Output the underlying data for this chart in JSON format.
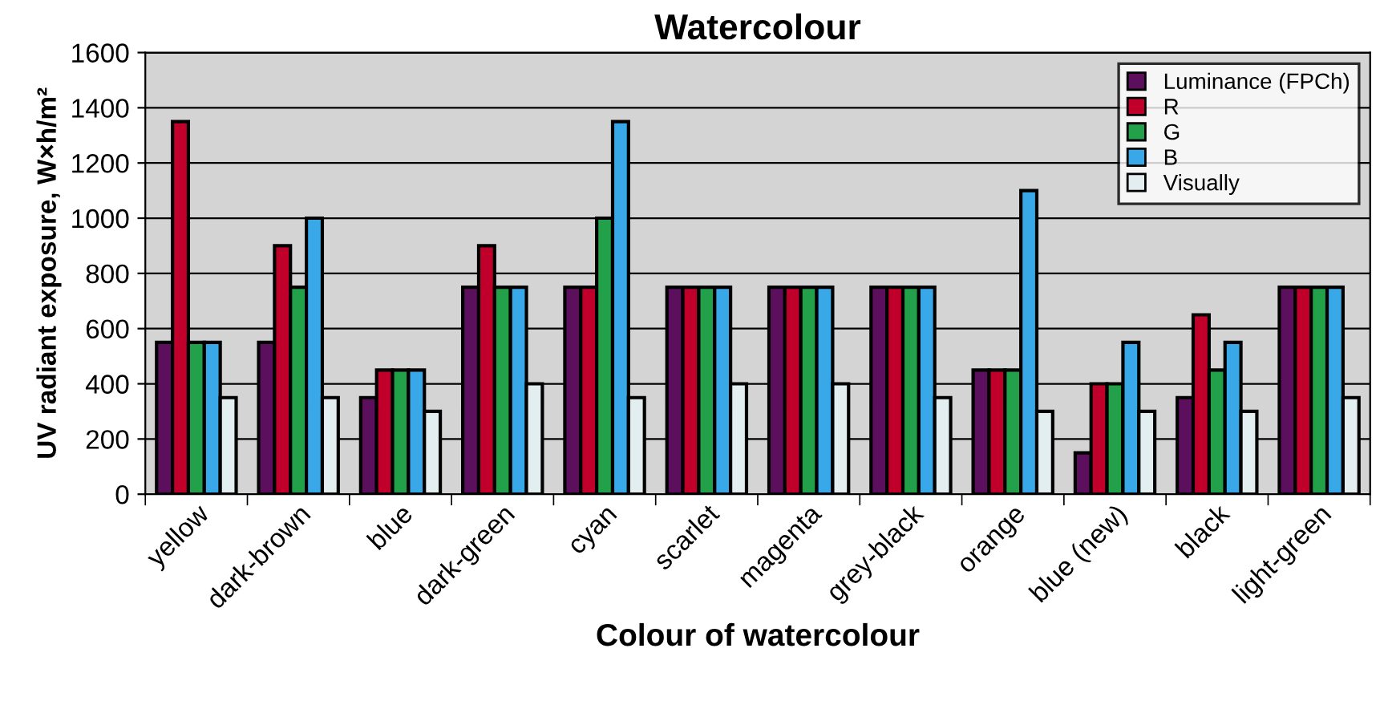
{
  "chart_data": {
    "type": "bar",
    "title": "Watercolour",
    "xlabel": "Colour of watercolour",
    "ylabel": "UV radiant exposure, W×h/m²",
    "categories": [
      "yellow",
      "dark-brown",
      "blue",
      "dark-green",
      "cyan",
      "scarlet",
      "magenta",
      "grey-black",
      "orange",
      "blue (new)",
      "black",
      "light-green"
    ],
    "series": [
      {
        "name": "Luminance (FPCh)",
        "color": "#5c0f5c",
        "values": [
          550,
          550,
          350,
          750,
          750,
          750,
          750,
          750,
          450,
          150,
          350,
          750
        ]
      },
      {
        "name": "R",
        "color": "#c0002a",
        "values": [
          1350,
          900,
          450,
          900,
          750,
          750,
          750,
          750,
          450,
          400,
          650,
          750
        ]
      },
      {
        "name": "G",
        "color": "#23a04a",
        "values": [
          550,
          750,
          450,
          750,
          1000,
          750,
          750,
          750,
          450,
          400,
          450,
          750
        ]
      },
      {
        "name": "B",
        "color": "#38a8e8",
        "values": [
          550,
          1000,
          450,
          750,
          1350,
          750,
          750,
          750,
          1100,
          550,
          550,
          750
        ]
      },
      {
        "name": "Visually",
        "color": "#e2eef0",
        "values": [
          350,
          350,
          300,
          400,
          350,
          400,
          400,
          350,
          300,
          300,
          300,
          350
        ]
      }
    ],
    "ylim": [
      0,
      1600
    ],
    "yticks": [
      0,
      200,
      400,
      600,
      800,
      1000,
      1200,
      1400,
      1600
    ],
    "grid": "y",
    "legend": "top right"
  }
}
